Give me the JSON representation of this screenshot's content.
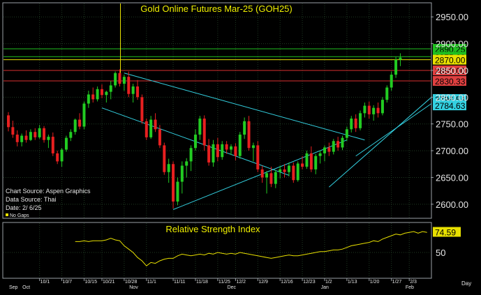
{
  "colors": {
    "background": "#000000",
    "panel_border": "#9aa0a6",
    "grid": "#1f3a22",
    "up_candle": "#22cc22",
    "down_candle": "#e82020",
    "trendline": "#33d0e0",
    "title": "#f0f000",
    "rsi_line": "#e8e000",
    "green_level": "#1fbf1f",
    "red_level": "#d83030",
    "yellow_level": "#e8e000"
  },
  "chart_data": [
    {
      "type": "candlestick",
      "title": "Gold Online Futures Mar-25 (GOH25)",
      "ylim": [
        2575,
        2975
      ],
      "y_ticks": [
        2600,
        2650,
        2700,
        2750,
        2800,
        2850,
        2900,
        2950
      ],
      "y_tick_labels": [
        "2600.00",
        "2650.00",
        "2700.00",
        "2750.00",
        "2800.00",
        "2850.00",
        "2900.00",
        "2950.00"
      ],
      "x_ticks": [
        {
          "i": 7,
          "label": "10/1"
        },
        {
          "i": 12,
          "label": "10/7"
        },
        {
          "i": 17,
          "label": "10/15"
        },
        {
          "i": 21,
          "label": "10/21"
        },
        {
          "i": 26,
          "label": "10/28"
        },
        {
          "i": 31,
          "label": "11/1"
        },
        {
          "i": 37,
          "label": "11/11"
        },
        {
          "i": 42,
          "label": "11/18"
        },
        {
          "i": 47,
          "label": "11/25"
        },
        {
          "i": 51,
          "label": "12/2"
        },
        {
          "i": 56,
          "label": "12/9"
        },
        {
          "i": 61,
          "label": "12/16"
        },
        {
          "i": 66,
          "label": "12/23"
        },
        {
          "i": 71,
          "label": "1/2"
        },
        {
          "i": 76,
          "label": "1/13"
        },
        {
          "i": 81,
          "label": "1/20"
        },
        {
          "i": 86,
          "label": "1/27"
        },
        {
          "i": 90,
          "label": "2/3"
        }
      ],
      "month_labels": [
        {
          "i": 0,
          "label": "Sep"
        },
        {
          "i": 3,
          "label": "Oct"
        },
        {
          "i": 27,
          "label": "Nov"
        },
        {
          "i": 49,
          "label": "Dec"
        },
        {
          "i": 70,
          "label": "Jan"
        },
        {
          "i": 89,
          "label": "Feb"
        }
      ],
      "candles": [
        [
          2766,
          2772,
          2736,
          2744
        ],
        [
          2744,
          2756,
          2724,
          2730
        ],
        [
          2730,
          2738,
          2708,
          2716
        ],
        [
          2716,
          2732,
          2708,
          2728
        ],
        [
          2728,
          2738,
          2715,
          2720
        ],
        [
          2720,
          2740,
          2718,
          2735
        ],
        [
          2735,
          2742,
          2720,
          2725
        ],
        [
          2725,
          2748,
          2722,
          2742
        ],
        [
          2742,
          2746,
          2715,
          2720
        ],
        [
          2720,
          2730,
          2705,
          2726
        ],
        [
          2726,
          2734,
          2690,
          2695
        ],
        [
          2695,
          2700,
          2675,
          2680
        ],
        [
          2680,
          2705,
          2670,
          2702
        ],
        [
          2702,
          2728,
          2698,
          2724
        ],
        [
          2724,
          2740,
          2718,
          2735
        ],
        [
          2735,
          2760,
          2730,
          2758
        ],
        [
          2758,
          2770,
          2740,
          2745
        ],
        [
          2745,
          2792,
          2740,
          2788
        ],
        [
          2788,
          2812,
          2780,
          2805
        ],
        [
          2805,
          2818,
          2790,
          2796
        ],
        [
          2796,
          2820,
          2792,
          2815
        ],
        [
          2815,
          2824,
          2798,
          2804
        ],
        [
          2804,
          2812,
          2790,
          2810
        ],
        [
          2810,
          2830,
          2796,
          2822
        ],
        [
          2822,
          2848,
          2818,
          2845
        ],
        [
          2845,
          2852,
          2820,
          2825
        ],
        [
          2825,
          2842,
          2812,
          2838
        ],
        [
          2838,
          2848,
          2800,
          2806
        ],
        [
          2806,
          2825,
          2790,
          2820
        ],
        [
          2820,
          2832,
          2795,
          2800
        ],
        [
          2800,
          2805,
          2750,
          2755
        ],
        [
          2755,
          2760,
          2720,
          2725
        ],
        [
          2725,
          2765,
          2722,
          2758
        ],
        [
          2758,
          2770,
          2735,
          2740
        ],
        [
          2740,
          2748,
          2705,
          2710
        ],
        [
          2710,
          2715,
          2655,
          2660
        ],
        [
          2660,
          2685,
          2640,
          2675
        ],
        [
          2675,
          2680,
          2592,
          2605
        ],
        [
          2605,
          2650,
          2598,
          2642
        ],
        [
          2642,
          2680,
          2620,
          2672
        ],
        [
          2672,
          2686,
          2650,
          2680
        ],
        [
          2680,
          2710,
          2662,
          2705
        ],
        [
          2705,
          2740,
          2700,
          2730
        ],
        [
          2730,
          2765,
          2720,
          2760
        ],
        [
          2760,
          2766,
          2700,
          2710
        ],
        [
          2710,
          2722,
          2672,
          2678
        ],
        [
          2678,
          2720,
          2670,
          2712
        ],
        [
          2712,
          2724,
          2680,
          2688
        ],
        [
          2688,
          2718,
          2683,
          2712
        ],
        [
          2712,
          2718,
          2694,
          2702
        ],
        [
          2702,
          2712,
          2692,
          2708
        ],
        [
          2708,
          2714,
          2682,
          2690
        ],
        [
          2690,
          2735,
          2685,
          2730
        ],
        [
          2730,
          2762,
          2722,
          2755
        ],
        [
          2755,
          2765,
          2700,
          2705
        ],
        [
          2705,
          2715,
          2680,
          2710
        ],
        [
          2710,
          2718,
          2660,
          2665
        ],
        [
          2665,
          2672,
          2640,
          2650
        ],
        [
          2650,
          2662,
          2620,
          2658
        ],
        [
          2658,
          2670,
          2632,
          2638
        ],
        [
          2638,
          2664,
          2630,
          2660
        ],
        [
          2660,
          2672,
          2648,
          2665
        ],
        [
          2665,
          2675,
          2650,
          2660
        ],
        [
          2660,
          2678,
          2652,
          2672
        ],
        [
          2672,
          2678,
          2640,
          2645
        ],
        [
          2645,
          2680,
          2642,
          2676
        ],
        [
          2676,
          2690,
          2665,
          2670
        ],
        [
          2670,
          2700,
          2666,
          2695
        ],
        [
          2695,
          2708,
          2660,
          2665
        ],
        [
          2665,
          2694,
          2656,
          2690
        ],
        [
          2690,
          2700,
          2676,
          2695
        ],
        [
          2695,
          2710,
          2680,
          2706
        ],
        [
          2706,
          2715,
          2690,
          2698
        ],
        [
          2698,
          2722,
          2693,
          2718
        ],
        [
          2718,
          2726,
          2700,
          2706
        ],
        [
          2706,
          2728,
          2701,
          2724
        ],
        [
          2724,
          2745,
          2718,
          2740
        ],
        [
          2740,
          2765,
          2734,
          2760
        ],
        [
          2760,
          2768,
          2735,
          2742
        ],
        [
          2742,
          2775,
          2738,
          2770
        ],
        [
          2770,
          2790,
          2762,
          2784
        ],
        [
          2784,
          2792,
          2760,
          2768
        ],
        [
          2768,
          2785,
          2756,
          2780
        ],
        [
          2780,
          2790,
          2762,
          2770
        ],
        [
          2770,
          2800,
          2766,
          2795
        ],
        [
          2795,
          2822,
          2790,
          2818
        ],
        [
          2818,
          2848,
          2812,
          2842
        ],
        [
          2842,
          2875,
          2836,
          2870
        ],
        [
          2870,
          2882,
          2858,
          2874
        ]
      ],
      "horizontal_levels": [
        {
          "label": "2890.25",
          "value": 2890.25,
          "color": "green"
        },
        {
          "label": "2875.60",
          "value": 2875.6,
          "color": "green"
        },
        {
          "label": "2870.00",
          "value": 2870,
          "color": "yellow"
        },
        {
          "label": "2850.00",
          "value": 2850,
          "color": "red"
        },
        {
          "label": "2830.33",
          "value": 2830.33,
          "color": "red"
        },
        {
          "label": "2796.54",
          "value": 2796.54,
          "color": "cyan"
        },
        {
          "label": "2784.63",
          "value": 2784.63,
          "color": "cyan"
        }
      ],
      "trendlines": [
        {
          "from": [
            26,
            2845
          ],
          "to": [
            80,
            2720
          ]
        },
        {
          "from": [
            21,
            2780
          ],
          "to": [
            63,
            2654
          ]
        },
        {
          "from": [
            37,
            2590
          ],
          "to": [
            76,
            2720
          ]
        },
        {
          "from": [
            72,
            2632
          ],
          "to": [
            95,
            2800
          ]
        },
        {
          "from": [
            78,
            2690
          ],
          "to": [
            95,
            2788
          ]
        }
      ],
      "marker_vertical": {
        "i": 25,
        "top": 2975
      }
    },
    {
      "type": "line",
      "title": "Relative Strength Index",
      "ylim": [
        20,
        85
      ],
      "y_ticks": [
        50
      ],
      "y_tick_labels": [
        "50"
      ],
      "last_value_label": "74.59",
      "values": [
        63,
        63,
        64,
        63,
        64,
        64,
        64,
        65,
        67,
        65,
        64,
        58,
        54,
        50,
        44,
        40,
        34,
        38,
        37,
        40,
        42,
        43,
        43,
        46,
        48,
        47,
        46,
        47,
        48,
        47,
        49,
        48,
        50,
        49,
        48,
        49,
        48,
        50,
        49,
        48,
        47,
        46,
        45,
        44,
        43,
        44,
        45,
        46,
        47,
        46,
        46,
        47,
        48,
        49,
        50,
        51,
        51,
        52,
        53,
        53,
        54,
        56,
        58,
        59,
        60,
        61,
        62,
        64,
        63,
        66,
        68,
        70,
        72,
        71,
        73,
        74,
        75,
        73,
        75,
        74
      ],
      "start_index": 15
    }
  ],
  "footer_labels": {
    "source": "Chart Source: Aspen Graphics",
    "data": "Data Source: Thai",
    "date": "Date:   2/ 6/25",
    "gaps": "No Gaps",
    "period": "Day"
  }
}
